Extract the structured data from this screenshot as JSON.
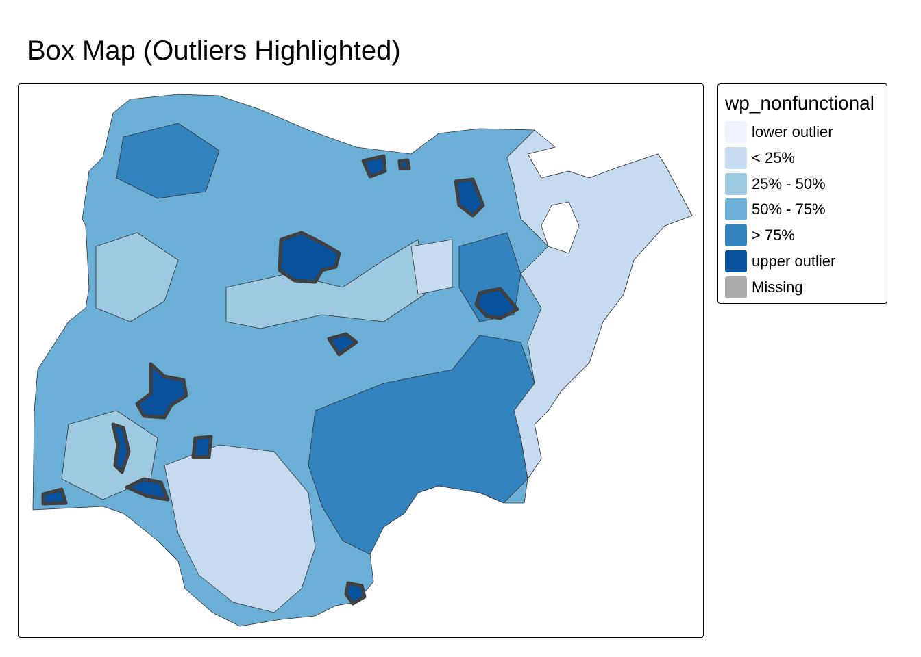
{
  "title": "Box Map (Outliers Highlighted)",
  "legend": {
    "title": "wp_nonfunctional",
    "items": [
      {
        "label": "lower outlier",
        "color": "#EFF3FF"
      },
      {
        "label": "< 25%",
        "color": "#C6DBEF"
      },
      {
        "label": "25% - 50%",
        "color": "#9ECAE1"
      },
      {
        "label": "50% - 75%",
        "color": "#6BAED6"
      },
      {
        "label": "> 75%",
        "color": "#3182BD"
      },
      {
        "label": "upper outlier",
        "color": "#08519C"
      },
      {
        "label": "Missing",
        "color": "#AAAAAA"
      }
    ]
  },
  "outlier_border_color": "#404040"
}
